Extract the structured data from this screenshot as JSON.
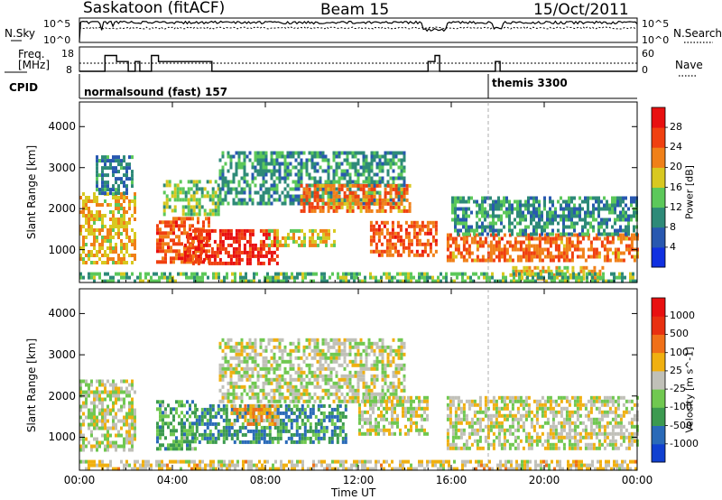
{
  "header": {
    "station": "Saskatoon (fitACF)",
    "beam": "Beam 15",
    "date": "15/Oct/2011"
  },
  "summary": {
    "nsky_label": "N.Sky",
    "nsky_ticks": [
      "10^5",
      "10^0"
    ],
    "nsearch_label": "N.Search",
    "nsearch_ticks": [
      "10^5",
      "10^0"
    ],
    "freq_label_1": "Freq.",
    "freq_label_2": "[MHz]",
    "freq_ticks": [
      "18",
      "8"
    ],
    "nave_label": "Nave",
    "nave_ticks": [
      "60",
      "0"
    ],
    "cpid_label": "CPID",
    "cpid_modes": [
      {
        "name": "normalsound (fast) 157",
        "start_hour": 0
      },
      {
        "name": "themis 3300",
        "start_hour": 18
      }
    ],
    "freq_steps": [
      [
        0,
        8
      ],
      [
        1.1,
        8
      ],
      [
        1.1,
        14.5
      ],
      [
        1.6,
        14.5
      ],
      [
        1.6,
        12
      ],
      [
        2.1,
        12
      ],
      [
        2.1,
        8
      ],
      [
        2.4,
        8
      ],
      [
        2.4,
        12
      ],
      [
        2.6,
        12
      ],
      [
        2.6,
        8
      ],
      [
        3.1,
        8
      ],
      [
        3.1,
        14.5
      ],
      [
        3.4,
        14.5
      ],
      [
        3.4,
        12
      ],
      [
        5.7,
        12
      ],
      [
        5.7,
        8
      ],
      [
        15.0,
        8
      ],
      [
        15.0,
        12
      ],
      [
        15.3,
        12
      ],
      [
        15.3,
        14.5
      ],
      [
        15.5,
        14.5
      ],
      [
        15.5,
        8
      ],
      [
        17.9,
        8
      ],
      [
        17.9,
        12
      ],
      [
        18.1,
        12
      ],
      [
        18.1,
        8
      ],
      [
        24,
        8
      ]
    ],
    "nave_level": 20
  },
  "chart_data": [
    {
      "type": "heatmap",
      "name": "power",
      "ylabel": "Slant Range [km]",
      "xlabel": "",
      "x_ticks": [
        "00:00",
        "04:00",
        "08:00",
        "12:00",
        "16:00",
        "20:00",
        "00:00"
      ],
      "x_range": [
        0,
        24
      ],
      "ylim": [
        200,
        4600
      ],
      "y_ticks": [
        1000,
        2000,
        3000,
        4000
      ],
      "colorbar": {
        "label": "Power [dB]",
        "ticks": [
          "4",
          "8",
          "12",
          "16",
          "20",
          "24",
          "28"
        ],
        "colors": [
          "#1030e0",
          "#2858b0",
          "#2e8a78",
          "#5cc85a",
          "#d8c820",
          "#f08018",
          "#f04010",
          "#e81010"
        ]
      },
      "regions": [
        {
          "t0": 0.0,
          "t1": 2.4,
          "r0": 700,
          "r1": 2400,
          "level": 0.62
        },
        {
          "t0": 0.7,
          "t1": 2.3,
          "r0": 2400,
          "r1": 3300,
          "level": 0.25
        },
        {
          "t0": 3.3,
          "t1": 5.6,
          "r0": 700,
          "r1": 1800,
          "level": 0.8
        },
        {
          "t0": 3.6,
          "t1": 6.0,
          "r0": 1900,
          "r1": 2700,
          "level": 0.45
        },
        {
          "t0": 4.5,
          "t1": 8.5,
          "r0": 700,
          "r1": 1500,
          "level": 0.92
        },
        {
          "t0": 8.0,
          "t1": 11.0,
          "r0": 1100,
          "r1": 1500,
          "level": 0.55
        },
        {
          "t0": 6.0,
          "t1": 14.0,
          "r0": 2100,
          "r1": 3400,
          "level": 0.3
        },
        {
          "t0": 9.5,
          "t1": 14.2,
          "r0": 1900,
          "r1": 2600,
          "level": 0.75
        },
        {
          "t0": 12.5,
          "t1": 15.3,
          "r0": 900,
          "r1": 1700,
          "level": 0.8
        },
        {
          "t0": 15.8,
          "t1": 24.0,
          "r0": 700,
          "r1": 1400,
          "level": 0.78
        },
        {
          "t0": 16.0,
          "t1": 24.0,
          "r0": 1400,
          "r1": 2300,
          "level": 0.3
        },
        {
          "t0": 18.5,
          "t1": 22.5,
          "r0": 300,
          "r1": 600,
          "level": 0.6
        },
        {
          "t0": 0.0,
          "t1": 24.0,
          "r0": 200,
          "r1": 450,
          "level": 0.4
        }
      ]
    },
    {
      "type": "heatmap",
      "name": "velocity",
      "ylabel": "Slant Range [km]",
      "xlabel": "Time UT",
      "x_ticks": [
        "00:00",
        "04:00",
        "08:00",
        "12:00",
        "16:00",
        "20:00",
        "00:00"
      ],
      "x_range": [
        0,
        24
      ],
      "ylim": [
        200,
        4600
      ],
      "y_ticks": [
        1000,
        2000,
        3000,
        4000
      ],
      "colorbar": {
        "label": "Velocity [m s^-1]",
        "ticks": [
          "1000",
          "500",
          "100",
          "25",
          "-25",
          "-100",
          "-500",
          "-1000"
        ],
        "colors": [
          "#1040d0",
          "#2a6ab8",
          "#3c9a50",
          "#70c850",
          "#c0c0b8",
          "#f0b010",
          "#f07018",
          "#e83010",
          "#e81010"
        ]
      },
      "regions": [
        {
          "t0": 0.0,
          "t1": 2.4,
          "r0": 700,
          "r1": 2400,
          "level": 0.48
        },
        {
          "t0": 3.3,
          "t1": 5.0,
          "r0": 700,
          "r1": 1900,
          "level": 0.3
        },
        {
          "t0": 5.0,
          "t1": 11.5,
          "r0": 900,
          "r1": 1800,
          "level": 0.22
        },
        {
          "t0": 6.5,
          "t1": 8.5,
          "r0": 1300,
          "r1": 1800,
          "level": 0.65
        },
        {
          "t0": 6.0,
          "t1": 14.0,
          "r0": 1900,
          "r1": 3400,
          "level": 0.48
        },
        {
          "t0": 12.0,
          "t1": 15.0,
          "r0": 1100,
          "r1": 2000,
          "level": 0.48
        },
        {
          "t0": 15.8,
          "t1": 24.0,
          "r0": 700,
          "r1": 2000,
          "level": 0.5
        },
        {
          "t0": 0.0,
          "t1": 24.0,
          "r0": 200,
          "r1": 450,
          "level": 0.55
        }
      ]
    }
  ]
}
